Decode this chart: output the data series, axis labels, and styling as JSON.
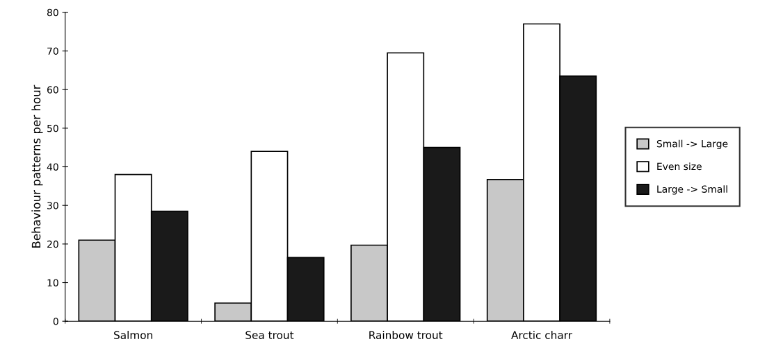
{
  "chart_data": {
    "type": "bar",
    "ylabel": "Behaviour patterns per hour",
    "categories": [
      "Salmon",
      "Sea trout",
      "Rainbow trout",
      "Arctic charr"
    ],
    "series": [
      {
        "name": "Small -> Large",
        "color": "#c8c8c8",
        "values": [
          21,
          4.7,
          19.7,
          36.7
        ]
      },
      {
        "name": "Even size",
        "color": "#ffffff",
        "values": [
          38,
          44,
          69.5,
          77
        ]
      },
      {
        "name": "Large -> Small",
        "color": "#1a1a1a",
        "values": [
          28.5,
          16.5,
          45,
          63.5
        ]
      }
    ],
    "ylim": [
      0,
      80
    ],
    "yticks": [
      0,
      10,
      20,
      30,
      40,
      50,
      60,
      70,
      80
    ],
    "grid": false,
    "legend": "right"
  }
}
